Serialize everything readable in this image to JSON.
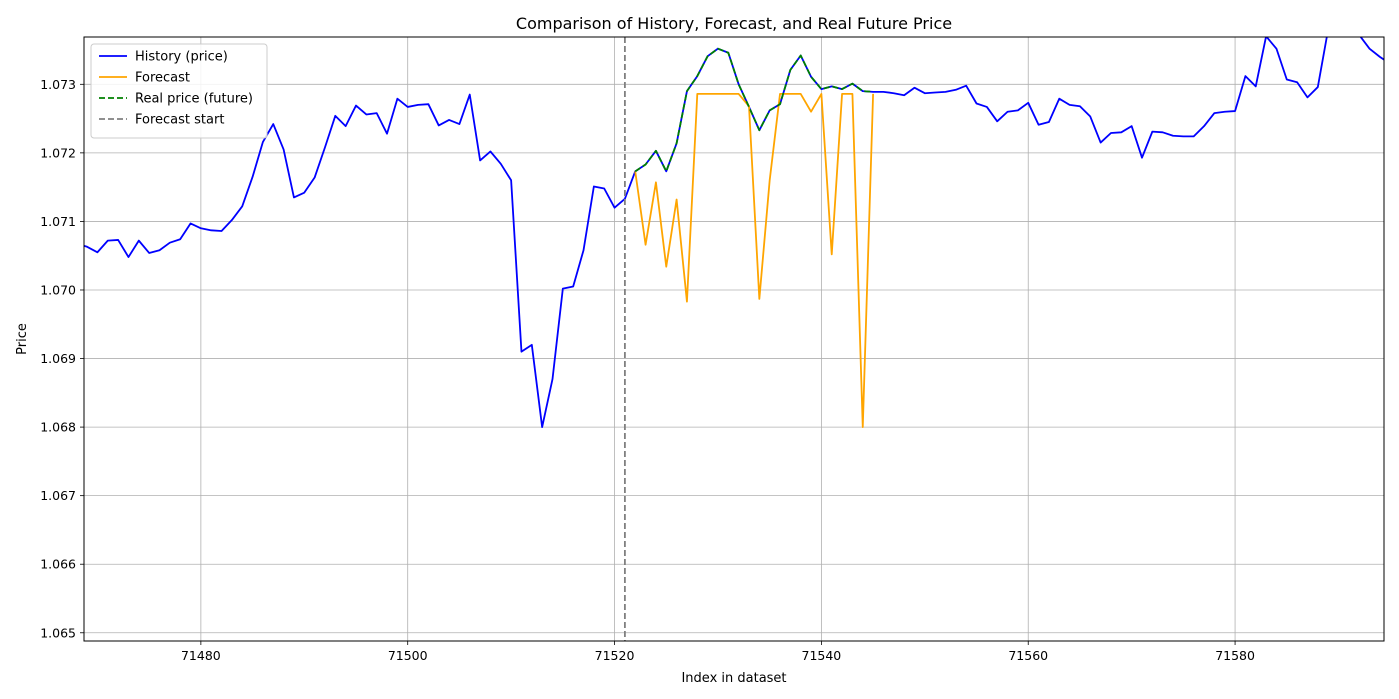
{
  "chart_data": {
    "type": "line",
    "title": "Comparison of History, Forecast, and Real Future Price",
    "xlabel": "Index in dataset",
    "ylabel": "Price",
    "xlim": [
      71468.7,
      71594.4
    ],
    "ylim": [
      1.06488,
      1.07369
    ],
    "xticks": [
      71480,
      71500,
      71520,
      71540,
      71560,
      71580
    ],
    "yticks": [
      1.065,
      1.066,
      1.067,
      1.068,
      1.069,
      1.07,
      1.071,
      1.072,
      1.073
    ],
    "ytick_labels": [
      "1.065",
      "1.066",
      "1.067",
      "1.068",
      "1.069",
      "1.070",
      "1.071",
      "1.072",
      "1.073"
    ],
    "grid": true,
    "legend_position": "top-left",
    "forecast_start": 71521,
    "series": [
      {
        "name": "History (price)",
        "color": "#0000ff",
        "style": "solid",
        "x": [
          71468,
          71469,
          71470,
          71471,
          71472,
          71473,
          71474,
          71475,
          71476,
          71477,
          71478,
          71479,
          71480,
          71481,
          71482,
          71483,
          71484,
          71485,
          71486,
          71487,
          71488,
          71489,
          71490,
          71491,
          71492,
          71493,
          71494,
          71495,
          71496,
          71497,
          71498,
          71499,
          71500,
          71501,
          71502,
          71503,
          71504,
          71505,
          71506,
          71507,
          71508,
          71509,
          71510,
          71511,
          71512,
          71513,
          71514,
          71515,
          71516,
          71517,
          71518,
          71519,
          71520,
          71521,
          71522,
          71523,
          71524,
          71525,
          71526,
          71527,
          71528,
          71529,
          71530,
          71531,
          71532,
          71533,
          71534,
          71535,
          71536,
          71537,
          71538,
          71539,
          71540,
          71541,
          71542,
          71543,
          71544,
          71545,
          71546,
          71547,
          71548,
          71549,
          71550,
          71551,
          71552,
          71553,
          71554,
          71555,
          71556,
          71557,
          71558,
          71559,
          71560,
          71561,
          71562,
          71563,
          71564,
          71565,
          71566,
          71567,
          71568,
          71569,
          71570,
          71571,
          71572,
          71573,
          71574,
          71575,
          71576,
          71577,
          71578,
          71579,
          71580,
          71581,
          71582,
          71583,
          71584,
          71585,
          71586,
          71587,
          71588,
          71589,
          71590,
          71591,
          71592,
          71593,
          71594,
          71595
        ],
        "values": [
          1.07068,
          1.07063,
          1.07055,
          1.07072,
          1.07073,
          1.07048,
          1.07072,
          1.07054,
          1.07058,
          1.07069,
          1.07074,
          1.07097,
          1.0709,
          1.07087,
          1.07086,
          1.07102,
          1.07122,
          1.07165,
          1.07216,
          1.07242,
          1.07205,
          1.07135,
          1.07142,
          1.07164,
          1.07208,
          1.07254,
          1.07239,
          1.07269,
          1.07256,
          1.07258,
          1.07228,
          1.07279,
          1.07267,
          1.0727,
          1.07271,
          1.0724,
          1.07248,
          1.07242,
          1.07285,
          1.07189,
          1.07202,
          1.07184,
          1.0716,
          1.0691,
          1.0692,
          1.068,
          1.0687,
          1.07002,
          1.07005,
          1.07058,
          1.07151,
          1.07148,
          1.0712,
          1.07133,
          1.07173,
          1.07183,
          1.07203,
          1.07173,
          1.07214,
          1.0729,
          1.07312,
          1.07341,
          1.07352,
          1.07346,
          1.073,
          1.07267,
          1.07233,
          1.07262,
          1.07271,
          1.07321,
          1.07342,
          1.07311,
          1.07293,
          1.07297,
          1.07293,
          1.07301,
          1.0729,
          1.07289,
          1.07289,
          1.07287,
          1.07284,
          1.07295,
          1.07287,
          1.07288,
          1.07289,
          1.07292,
          1.07298,
          1.07272,
          1.07267,
          1.07246,
          1.0726,
          1.07262,
          1.07273,
          1.07241,
          1.07245,
          1.07279,
          1.0727,
          1.07268,
          1.07253,
          1.07215,
          1.07229,
          1.0723,
          1.07239,
          1.07193,
          1.07231,
          1.0723,
          1.07225,
          1.07224,
          1.07224,
          1.07239,
          1.07258,
          1.0726,
          1.07261,
          1.07312,
          1.07297,
          1.0737,
          1.07352,
          1.07307,
          1.07303,
          1.07281,
          1.07296,
          1.0738,
          1.074,
          1.074,
          1.07372,
          1.07352,
          1.0734,
          1.0733
        ]
      },
      {
        "name": "Forecast",
        "color": "#ffa500",
        "style": "solid",
        "x": [
          71522,
          71523,
          71524,
          71525,
          71526,
          71527,
          71528,
          71529,
          71530,
          71531,
          71532,
          71533,
          71534,
          71535,
          71536,
          71537,
          71538,
          71539,
          71540,
          71541,
          71542,
          71543,
          71544,
          71545
        ],
        "values": [
          1.07173,
          1.07066,
          1.07157,
          1.07034,
          1.07132,
          1.06983,
          1.07286,
          1.07286,
          1.07286,
          1.07286,
          1.07286,
          1.07268,
          1.06987,
          1.0716,
          1.07286,
          1.07286,
          1.07286,
          1.0726,
          1.07286,
          1.07052,
          1.07286,
          1.07286,
          1.068,
          1.07286
        ]
      },
      {
        "name": "Real price (future)",
        "color": "#008000",
        "style": "dashed",
        "x": [
          71522,
          71523,
          71524,
          71525,
          71526,
          71527,
          71528,
          71529,
          71530,
          71531,
          71532,
          71533,
          71534,
          71535,
          71536,
          71537,
          71538,
          71539,
          71540,
          71541,
          71542,
          71543,
          71544,
          71545
        ],
        "values": [
          1.07173,
          1.07183,
          1.07203,
          1.07173,
          1.07214,
          1.0729,
          1.07312,
          1.07341,
          1.07352,
          1.07346,
          1.073,
          1.07267,
          1.07233,
          1.07262,
          1.07271,
          1.07321,
          1.07342,
          1.07311,
          1.07293,
          1.07297,
          1.07293,
          1.07301,
          1.0729,
          1.07289
        ]
      },
      {
        "name": "Forecast start",
        "color": "#808080",
        "style": "dashed",
        "vline": 71521
      }
    ]
  }
}
